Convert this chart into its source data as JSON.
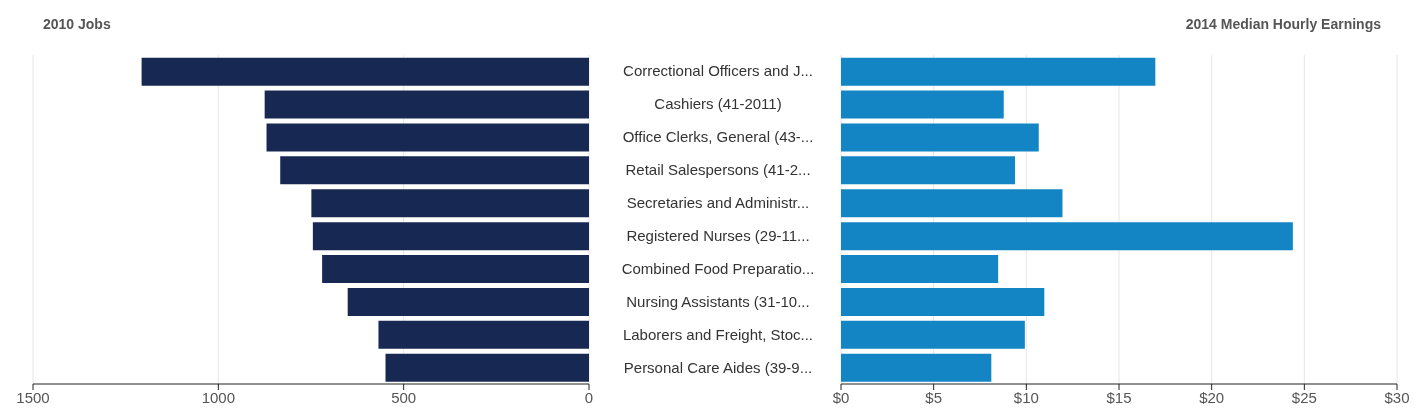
{
  "chart_data": [
    {
      "type": "bar",
      "orientation": "horizontal",
      "title": "2010 Jobs",
      "categories": [
        "Correctional Officers and J...",
        "Cashiers (41-2011)",
        "Office Clerks, General (43-...",
        "Retail Salespersons (41-2...",
        "Secretaries and Administr...",
        "Registered Nurses (29-11...",
        "Combined Food Preparatio...",
        "Nursing Assistants (31-10...",
        "Laborers and Freight, Stoc...",
        "Personal Care Aides (39-9..."
      ],
      "values": [
        1207,
        875,
        870,
        833,
        749,
        745,
        720,
        651,
        568,
        549
      ],
      "color": "#172852",
      "xlim": [
        1500,
        0
      ],
      "xticks": [
        1500,
        1000,
        500,
        0
      ],
      "grid": "x"
    },
    {
      "type": "bar",
      "orientation": "horizontal",
      "title": "2014 Median Hourly Earnings",
      "categories": [
        null,
        null,
        null,
        null,
        null,
        null,
        null,
        null,
        null,
        null
      ],
      "values": [
        16.96,
        8.78,
        10.67,
        9.39,
        11.95,
        24.38,
        8.48,
        10.97,
        9.92,
        8.11
      ],
      "color": "#1385c5",
      "xlim": [
        0,
        30
      ],
      "xticks": [
        {
          "value": 0,
          "label": "$0"
        },
        {
          "value": 5,
          "label": "$5"
        },
        {
          "value": 10,
          "label": "$10"
        },
        {
          "value": 15,
          "label": "$15"
        },
        {
          "value": 20,
          "label": "$20"
        },
        {
          "value": 25,
          "label": "$25"
        },
        {
          "value": 30,
          "label": "$30"
        }
      ],
      "tick_labels": "x",
      "grid": "x"
    }
  ]
}
